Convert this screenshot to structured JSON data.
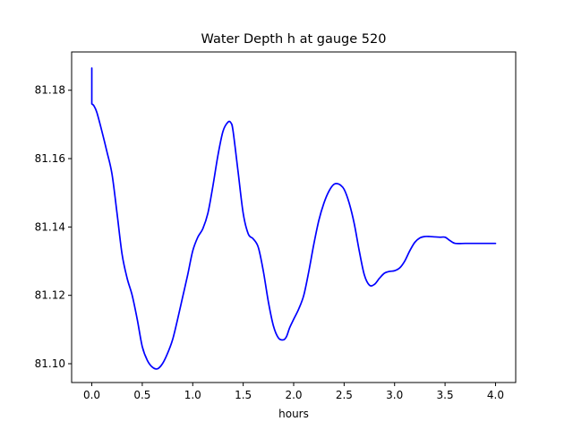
{
  "chart_data": {
    "type": "line",
    "title": "Water Depth h at gauge 520",
    "xlabel": "hours",
    "ylabel": "",
    "xlim": [
      -0.2,
      4.2
    ],
    "ylim": [
      81.0945,
      81.1912
    ],
    "x_ticks": [
      0.0,
      0.5,
      1.0,
      1.5,
      2.0,
      2.5,
      3.0,
      3.5,
      4.0
    ],
    "x_tick_labels": [
      "0.0",
      "0.5",
      "1.0",
      "1.5",
      "2.0",
      "2.5",
      "3.0",
      "3.5",
      "4.0"
    ],
    "y_ticks": [
      81.1,
      81.12,
      81.14,
      81.16,
      81.18
    ],
    "y_tick_labels": [
      "81.10",
      "81.12",
      "81.14",
      "81.16",
      "81.18"
    ],
    "grid": false,
    "series": [
      {
        "color": "#0000ff",
        "x": [
          0.0,
          0.0,
          0.02,
          0.05,
          0.1,
          0.15,
          0.2,
          0.25,
          0.3,
          0.35,
          0.4,
          0.45,
          0.5,
          0.55,
          0.6,
          0.65,
          0.7,
          0.75,
          0.8,
          0.85,
          0.9,
          0.95,
          1.0,
          1.05,
          1.1,
          1.15,
          1.2,
          1.25,
          1.3,
          1.35,
          1.38,
          1.4,
          1.45,
          1.5,
          1.55,
          1.6,
          1.65,
          1.7,
          1.75,
          1.8,
          1.85,
          1.9,
          1.93,
          1.96,
          2.0,
          2.05,
          2.1,
          2.15,
          2.2,
          2.25,
          2.3,
          2.35,
          2.4,
          2.45,
          2.5,
          2.55,
          2.6,
          2.65,
          2.7,
          2.75,
          2.8,
          2.85,
          2.9,
          2.95,
          3.0,
          3.05,
          3.1,
          3.15,
          3.2,
          3.25,
          3.3,
          3.35,
          3.4,
          3.45,
          3.5,
          3.55,
          3.6,
          3.7,
          3.8,
          3.9,
          4.0
        ],
        "y": [
          81.1865,
          81.176,
          81.1755,
          81.1735,
          81.168,
          81.162,
          81.1555,
          81.144,
          81.132,
          81.125,
          81.12,
          81.113,
          81.105,
          81.101,
          81.099,
          81.0985,
          81.1,
          81.103,
          81.107,
          81.113,
          81.1195,
          81.126,
          81.133,
          81.137,
          81.1395,
          81.144,
          81.152,
          81.161,
          81.168,
          81.1707,
          81.1704,
          81.168,
          81.156,
          81.144,
          81.138,
          81.1365,
          81.134,
          81.127,
          81.118,
          81.111,
          81.1075,
          81.107,
          81.108,
          81.1105,
          81.113,
          81.116,
          81.12,
          81.127,
          81.135,
          81.142,
          81.147,
          81.1505,
          81.1525,
          81.1525,
          81.151,
          81.147,
          81.141,
          81.133,
          81.126,
          81.123,
          81.1232,
          81.125,
          81.1265,
          81.127,
          81.1272,
          81.128,
          81.13,
          81.133,
          81.1355,
          81.1368,
          81.1372,
          81.1372,
          81.1371,
          81.137,
          81.137,
          81.136,
          81.1352,
          81.1352,
          81.1352,
          81.1352,
          81.1352
        ]
      }
    ]
  }
}
